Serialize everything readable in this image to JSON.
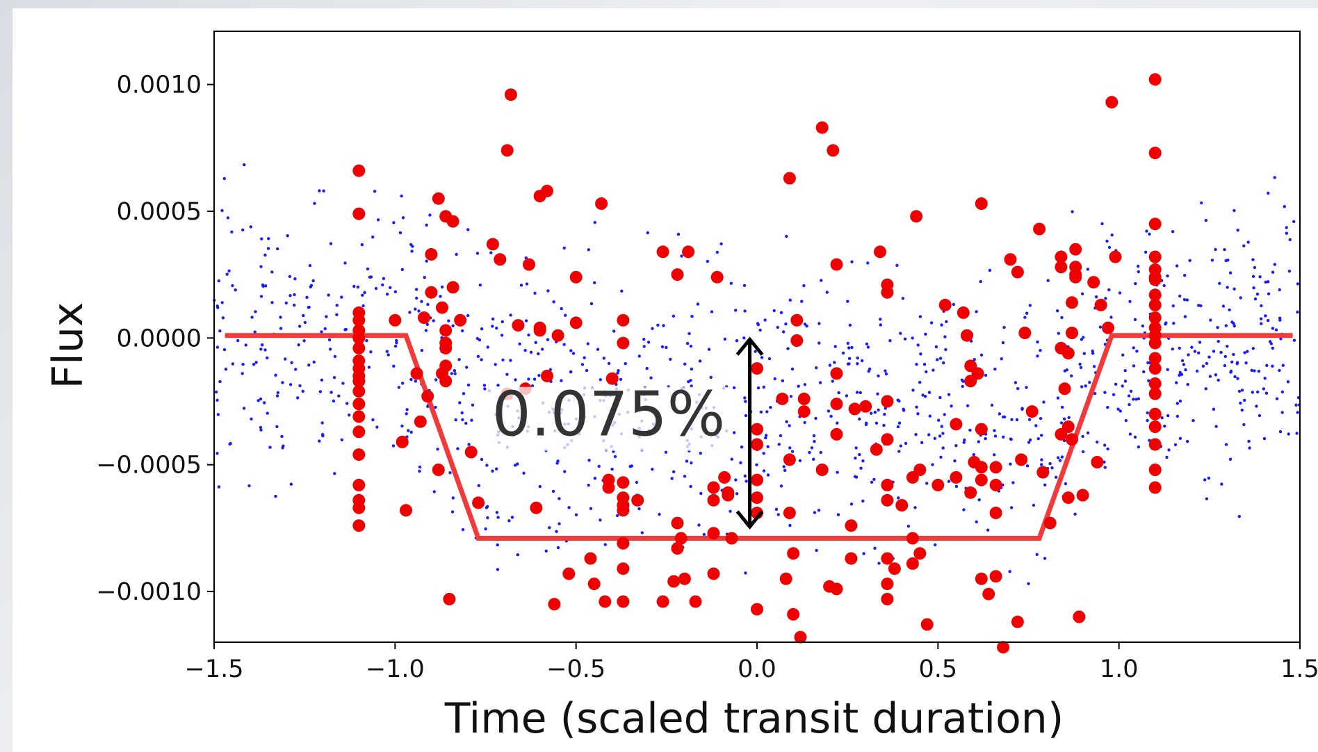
{
  "chart_data": {
    "type": "scatter",
    "xlabel": "Time (scaled transit duration)",
    "ylabel": "Flux",
    "xlim": [
      -1.5,
      1.5
    ],
    "ylim": [
      -0.0012,
      0.00121
    ],
    "x_ticks": [
      -1.5,
      -1.0,
      -0.5,
      0.0,
      0.5,
      1.0,
      1.5
    ],
    "x_tick_labels": [
      "−1.5",
      "−1.0",
      "−0.5",
      "0.0",
      "0.5",
      "1.0",
      "1.5"
    ],
    "y_ticks": [
      0.001,
      0.0005,
      0.0,
      -0.0005,
      -0.001
    ],
    "y_tick_labels": [
      "0.0010",
      "0.0005",
      "0.0000",
      "−0.0005",
      "−0.0010"
    ],
    "grid": false,
    "annotation": {
      "text": "0.075%",
      "arrow_x": -0.02,
      "arrow_y_top": 0.0,
      "arrow_y_bottom": -0.00075
    },
    "colors": {
      "background_points": "#1a1aff",
      "binned_points": "#ee0000",
      "model_line": "#f23a3a",
      "arrow": "#000000"
    },
    "series": [
      {
        "kind": "model",
        "x": [
          -1.47,
          -0.97,
          -0.77,
          0.78,
          0.98,
          1.48
        ],
        "y": [
          1e-05,
          1e-05,
          -0.00079,
          -0.00079,
          1e-05,
          1e-05
        ]
      },
      {
        "kind": "binned",
        "x": [
          -1.1,
          -1.1,
          -1.1,
          -1.1,
          -1.1,
          -1.1,
          -1.1,
          -1.1,
          -1.1,
          -1.1,
          -1.1,
          -1.1,
          -1.1,
          -1.1,
          -1.1,
          -1.1,
          -1.1,
          -1.1,
          -1.1,
          -1.1,
          -1.0,
          -0.98,
          -0.97,
          -0.94,
          -0.93,
          -0.92,
          -0.91,
          -0.9,
          -0.9,
          -0.88,
          -0.88,
          -0.87,
          -0.87,
          -0.86,
          -0.86,
          -0.86,
          -0.86,
          -0.86,
          -0.86,
          -0.85,
          -0.84,
          -0.84,
          -0.82,
          -0.79,
          -0.77,
          -0.73,
          -0.71,
          -0.69,
          -0.69,
          -0.68,
          -0.66,
          -0.64,
          -0.63,
          -0.61,
          -0.6,
          -0.6,
          -0.6,
          -0.58,
          -0.58,
          -0.56,
          -0.55,
          -0.52,
          -0.5,
          -0.5,
          -0.46,
          -0.45,
          -0.43,
          -0.42,
          -0.41,
          -0.41,
          -0.4,
          -0.37,
          -0.37,
          -0.37,
          -0.37,
          -0.37,
          -0.37,
          -0.37,
          -0.37,
          -0.37,
          -0.33,
          -0.26,
          -0.26,
          -0.23,
          -0.22,
          -0.22,
          -0.22,
          -0.21,
          -0.2,
          -0.19,
          -0.17,
          -0.12,
          -0.12,
          -0.12,
          -0.12,
          -0.11,
          -0.09,
          -0.08,
          -0.08,
          -0.07,
          0.0,
          0.0,
          0.0,
          0.0,
          0.0,
          0.0,
          0.0,
          0.07,
          0.08,
          0.09,
          0.09,
          0.09,
          0.1,
          0.1,
          0.11,
          0.11,
          0.12,
          0.13,
          0.13,
          0.18,
          0.18,
          0.2,
          0.21,
          0.22,
          0.22,
          0.22,
          0.22,
          0.22,
          0.26,
          0.26,
          0.27,
          0.3,
          0.33,
          0.34,
          0.36,
          0.36,
          0.36,
          0.36,
          0.36,
          0.36,
          0.36,
          0.36,
          0.36,
          0.38,
          0.4,
          0.43,
          0.43,
          0.43,
          0.44,
          0.45,
          0.45,
          0.47,
          0.5,
          0.52,
          0.55,
          0.55,
          0.57,
          0.58,
          0.59,
          0.59,
          0.59,
          0.6,
          0.61,
          0.62,
          0.62,
          0.62,
          0.62,
          0.62,
          0.64,
          0.66,
          0.66,
          0.66,
          0.66,
          0.68,
          0.7,
          0.72,
          0.72,
          0.73,
          0.74,
          0.76,
          0.78,
          0.79,
          0.81,
          0.84,
          0.84,
          0.84,
          0.84,
          0.85,
          0.86,
          0.86,
          0.86,
          0.87,
          0.87,
          0.87,
          0.88,
          0.88,
          0.88,
          0.88,
          0.89,
          0.9,
          0.93,
          0.94,
          0.95,
          0.97,
          0.98,
          0.99,
          1.1,
          1.1,
          1.1,
          1.1,
          1.1,
          1.1,
          1.1,
          1.1,
          1.1,
          1.1,
          1.1,
          1.1,
          1.1,
          1.1,
          1.1,
          1.1,
          1.1,
          1.1,
          1.1,
          1.1,
          1.1,
          1.1
        ],
        "y": [
          0.00066,
          0.00049,
          0.0001,
          7e-05,
          3e-05,
          0.0,
          -4e-05,
          -9e-05,
          -0.00012,
          -0.00015,
          -0.00017,
          -0.00021,
          -0.00026,
          -0.00031,
          -0.00037,
          -0.00046,
          -0.00058,
          -0.00064,
          -0.00067,
          -0.00074,
          7e-05,
          -0.00041,
          -0.00068,
          -0.00014,
          -0.00033,
          8e-05,
          -0.00023,
          0.00018,
          0.00033,
          -0.00052,
          0.00055,
          0.00012,
          -0.00014,
          0.00048,
          3e-05,
          -2e-05,
          -0.00017,
          -0.00011,
          -4e-05,
          -0.00103,
          0.00046,
          0.0002,
          7e-05,
          -0.00045,
          -0.00065,
          0.00037,
          0.00031,
          0.00074,
          -0.00022,
          0.00096,
          5e-05,
          -0.0002,
          0.00029,
          -0.00067,
          0.00056,
          4e-05,
          3e-05,
          -0.00015,
          0.00058,
          -0.00105,
          1e-05,
          -0.00093,
          6e-05,
          0.00024,
          -0.00087,
          -0.00097,
          0.00053,
          -0.00104,
          -0.00059,
          -0.00056,
          -0.00016,
          -0.00104,
          -0.00091,
          -0.00081,
          -0.00068,
          -0.00066,
          -0.00063,
          -0.00057,
          7e-05,
          -2e-05,
          -0.00064,
          0.00034,
          -0.00104,
          -0.00096,
          0.00025,
          -0.00073,
          -0.00083,
          -0.00079,
          -0.00095,
          0.00034,
          -0.00104,
          -0.00093,
          -0.00077,
          -0.00064,
          -0.00059,
          0.00024,
          -0.00055,
          -0.00062,
          -0.00061,
          -0.00079,
          -0.00069,
          -0.00063,
          -0.00056,
          -0.00042,
          -0.00012,
          -0.00036,
          -0.00107,
          -0.00024,
          -0.00095,
          0.00063,
          -0.00069,
          -0.00048,
          -0.00085,
          -0.00109,
          7e-05,
          -1e-05,
          -0.00118,
          -0.00029,
          -0.00024,
          0.00083,
          -0.00052,
          -0.00098,
          0.00074,
          0.00029,
          -0.00014,
          -0.00026,
          -0.00038,
          -0.00099,
          -0.00087,
          -0.00074,
          -0.00028,
          -0.00027,
          -0.00044,
          0.00034,
          0.00021,
          0.00018,
          -0.00025,
          -0.00058,
          -0.00064,
          -0.00087,
          -0.00097,
          -0.00103,
          -0.0004,
          -0.00091,
          -0.00066,
          -0.00055,
          -0.00079,
          -0.00089,
          0.00048,
          -0.00052,
          -0.00085,
          -0.00113,
          -0.00058,
          0.00013,
          -0.00034,
          -0.00055,
          0.0001,
          1e-05,
          -0.00017,
          -0.00011,
          -0.00061,
          -0.00049,
          -0.00014,
          -0.00036,
          -0.00056,
          -0.00051,
          -0.00095,
          0.00053,
          -0.00101,
          -0.00058,
          -0.00094,
          -0.00051,
          -0.00069,
          -0.00122,
          0.00031,
          0.00026,
          -0.00112,
          -0.00048,
          2e-05,
          -0.00029,
          0.00043,
          -0.00053,
          -0.00073,
          -0.00038,
          -4e-05,
          0.00032,
          0.00028,
          -0.0002,
          -0.00063,
          -0.00035,
          -6e-05,
          2e-05,
          0.00014,
          -0.0004,
          0.00035,
          0.00028,
          0.00025,
          0.00024,
          -0.0011,
          -0.00062,
          0.00022,
          -0.00049,
          0.00013,
          4e-05,
          0.00093,
          0.00032,
          0.00102,
          0.00073,
          0.00045,
          0.00032,
          0.00027,
          0.00023,
          0.00017,
          0.00013,
          8e-05,
          4e-05,
          1e-05,
          -2e-05,
          -8e-05,
          -0.00012,
          -0.00018,
          -0.00022,
          -0.0003,
          -0.00035,
          -0.00042,
          -0.00052,
          -0.00059,
          0.00024
        ]
      }
    ]
  }
}
